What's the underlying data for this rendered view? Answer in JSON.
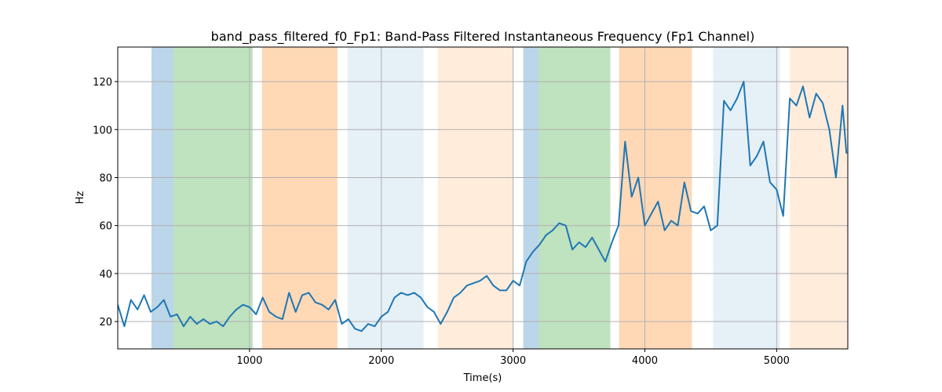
{
  "chart_data": {
    "type": "line",
    "title": "band_pass_filtered_f0_Fp1: Band-Pass Filtered Instantaneous Frequency (Fp1 Channel)",
    "x_label": "Time(s)",
    "y_label": "Hz",
    "x": [
      0,
      50,
      100,
      150,
      200,
      250,
      300,
      350,
      400,
      450,
      500,
      550,
      600,
      650,
      700,
      750,
      800,
      850,
      900,
      950,
      1000,
      1050,
      1100,
      1150,
      1200,
      1250,
      1300,
      1350,
      1400,
      1450,
      1500,
      1550,
      1600,
      1650,
      1700,
      1750,
      1800,
      1850,
      1900,
      1950,
      2000,
      2050,
      2100,
      2150,
      2200,
      2250,
      2300,
      2350,
      2400,
      2450,
      2500,
      2550,
      2600,
      2650,
      2700,
      2750,
      2800,
      2850,
      2900,
      2950,
      3000,
      3050,
      3100,
      3150,
      3200,
      3250,
      3300,
      3350,
      3400,
      3450,
      3500,
      3550,
      3600,
      3650,
      3700,
      3750,
      3800,
      3850,
      3900,
      3950,
      4000,
      4050,
      4100,
      4150,
      4200,
      4250,
      4300,
      4350,
      4400,
      4450,
      4500,
      4550,
      4600,
      4650,
      4700,
      4750,
      4800,
      4850,
      4900,
      4950,
      5000,
      5050,
      5100,
      5150,
      5200,
      5250,
      5300,
      5350,
      5400,
      5450,
      5500,
      5530
    ],
    "series": [
      {
        "name": "band_pass_filtered_f0_Fp1",
        "color": "#1f77b4",
        "values": [
          27,
          18,
          29,
          25,
          31,
          24,
          26,
          29,
          22,
          23,
          18,
          22,
          19,
          21,
          19,
          20,
          18,
          22,
          25,
          27,
          26,
          23,
          30,
          24,
          22,
          21,
          32,
          24,
          31,
          32,
          28,
          27,
          25,
          29,
          19,
          21,
          17,
          16,
          19,
          18,
          22,
          24,
          30,
          32,
          31,
          32,
          30,
          26,
          24,
          19,
          24,
          30,
          32,
          35,
          36,
          37,
          39,
          35,
          33,
          33,
          37,
          35,
          45,
          49,
          52,
          56,
          58,
          61,
          60,
          50,
          53,
          51,
          55,
          50,
          45,
          53,
          60,
          95,
          72,
          80,
          60,
          65,
          70,
          58,
          62,
          60,
          78,
          66,
          65,
          68,
          58,
          60,
          112,
          108,
          113,
          120,
          85,
          89,
          95,
          78,
          75,
          64,
          113,
          110,
          118,
          105,
          115,
          111,
          100,
          80,
          110,
          90
        ]
      }
    ],
    "spans": [
      {
        "start": 256,
        "end": 423,
        "color": "rgba(31,119,180,0.3)"
      },
      {
        "start": 423,
        "end": 1024,
        "color": "rgba(44,160,44,0.3)"
      },
      {
        "start": 1095,
        "end": 1667,
        "color": "rgba(255,127,14,0.3)"
      },
      {
        "start": 1744,
        "end": 2321,
        "color": "rgba(31,119,180,0.11)"
      },
      {
        "start": 2429,
        "end": 3000,
        "color": "rgba(255,127,14,0.15)"
      },
      {
        "start": 3077,
        "end": 3196,
        "color": "rgba(31,119,180,0.3)"
      },
      {
        "start": 3196,
        "end": 3738,
        "color": "rgba(44,160,44,0.3)"
      },
      {
        "start": 3804,
        "end": 4357,
        "color": "rgba(255,127,14,0.3)"
      },
      {
        "start": 4518,
        "end": 5024,
        "color": "rgba(31,119,180,0.11)"
      },
      {
        "start": 5101,
        "end": 5540,
        "color": "rgba(255,127,14,0.15)"
      }
    ],
    "xlim": [
      0,
      5540
    ],
    "ylim": [
      8.6,
      134.4
    ],
    "xticks": [
      1000,
      2000,
      3000,
      4000,
      5000
    ],
    "yticks": [
      20,
      40,
      60,
      80,
      100,
      120
    ],
    "grid": true
  }
}
